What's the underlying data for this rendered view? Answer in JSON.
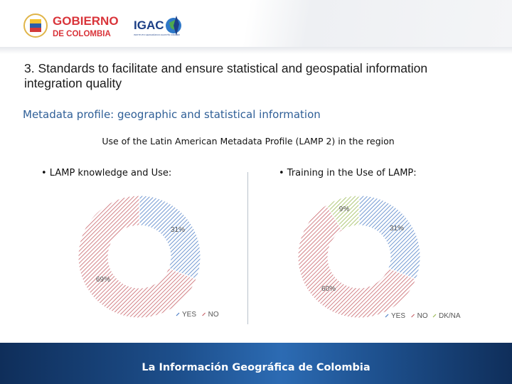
{
  "header": {
    "gov_logo_line1": "GOBIERNO",
    "gov_logo_line2": "DE COLOMBIA",
    "igac_logo": "IGAC",
    "igac_logo_small": "INSTITUTO GEOGRÁFICO AGUSTÍN CODAZZI"
  },
  "title": "3. Standards to facilitate and ensure statistical and geospatial information integration quality",
  "subtitle": "Metadata profile: geographic and statistical information",
  "section_heading": "Use of the Latin American Metadata Profile (LAMP 2) in the region",
  "bullets": {
    "left": "• LAMP knowledge and Use:",
    "right": "• Training in the Use of LAMP:"
  },
  "footer": "La Información Geográfica de Colombia",
  "colors": {
    "blue": "#4f7fc7",
    "red": "#c8646a",
    "green": "#9cbb58",
    "heading_blue": "#2f5f97"
  },
  "chart_data": [
    {
      "type": "pie",
      "donut": true,
      "categories": [
        "YES",
        "NO"
      ],
      "values": [
        31,
        69
      ],
      "labels": [
        "31%",
        "69%"
      ],
      "legend": "bottom"
    },
    {
      "type": "pie",
      "donut": true,
      "categories": [
        "YES",
        "NO",
        "DK/NA"
      ],
      "values": [
        31,
        60,
        9
      ],
      "labels": [
        "31%",
        "60%",
        "9%"
      ],
      "legend": "bottom"
    }
  ]
}
